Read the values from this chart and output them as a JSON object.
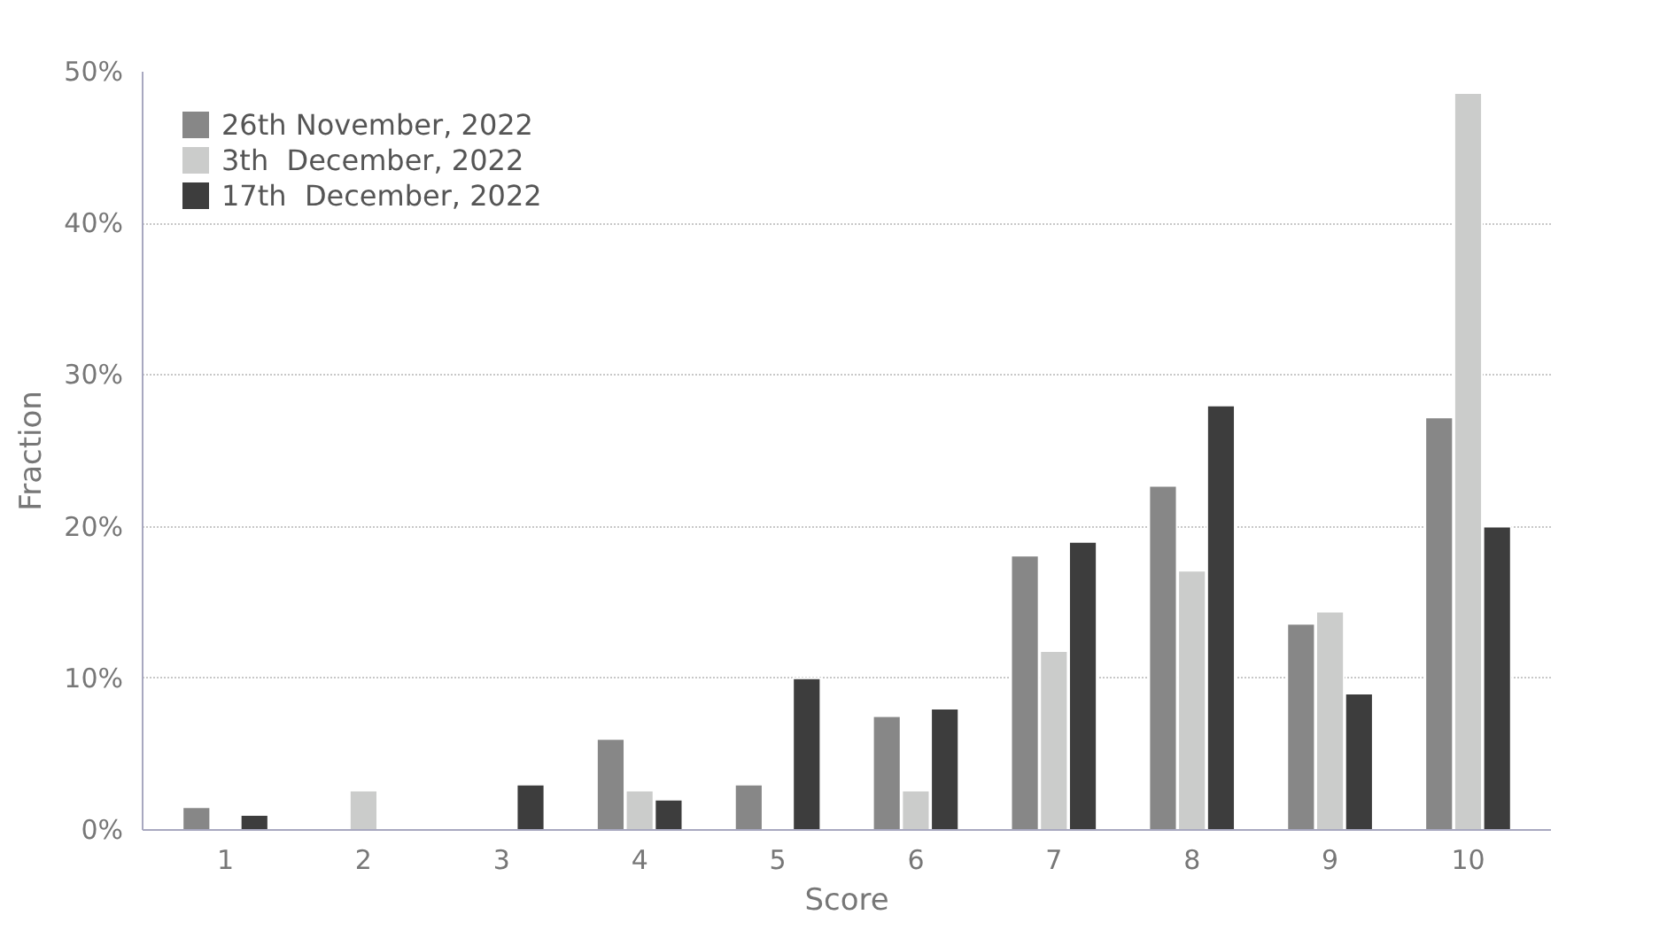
{
  "chart_data": {
    "type": "bar",
    "xlabel": "Score",
    "ylabel": "Fraction",
    "categories": [
      "1",
      "2",
      "3",
      "4",
      "5",
      "6",
      "7",
      "8",
      "9",
      "10"
    ],
    "series": [
      {
        "name": "26th November, 2022",
        "color": "#878787",
        "values": [
          1.5,
          null,
          null,
          6.0,
          3.0,
          7.5,
          18.1,
          22.7,
          13.6,
          27.2
        ]
      },
      {
        "name": "3th  December, 2022",
        "color": "#cbcccb",
        "values": [
          null,
          2.6,
          null,
          2.6,
          null,
          2.6,
          11.8,
          17.1,
          14.4,
          48.6
        ]
      },
      {
        "name": "17th  December, 2022",
        "color": "#3d3d3d",
        "values": [
          1.0,
          null,
          3.0,
          2.0,
          10.0,
          8.0,
          19.0,
          28.0,
          9.0,
          20.0
        ]
      }
    ],
    "ylim": [
      0,
      50
    ],
    "yticks": [
      {
        "value": 0,
        "label": "0%"
      },
      {
        "value": 10,
        "label": "10%"
      },
      {
        "value": 20,
        "label": "20%"
      },
      {
        "value": 30,
        "label": "30%"
      },
      {
        "value": 40,
        "label": "40%"
      },
      {
        "value": 50,
        "label": "50%"
      }
    ],
    "grid": "y",
    "legend": "top left"
  }
}
